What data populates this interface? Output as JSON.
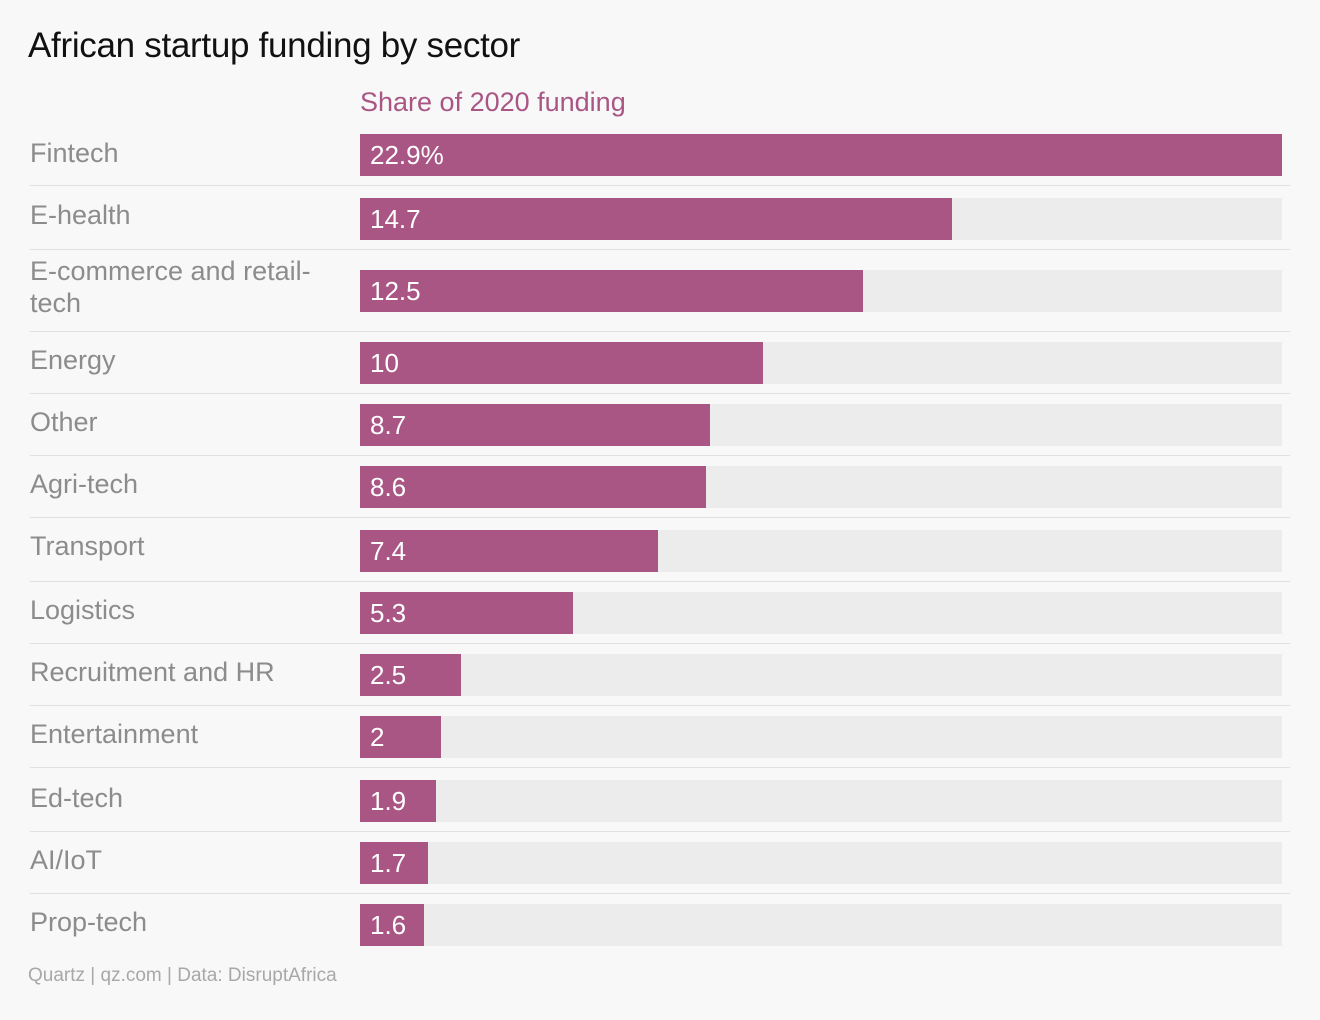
{
  "chart_data": {
    "type": "bar",
    "orientation": "horizontal",
    "title": "African startup funding by sector",
    "series": [
      {
        "name": "Share of 2020 funding",
        "values": [
          22.9,
          14.7,
          12.5,
          10,
          8.7,
          8.6,
          7.4,
          5.3,
          2.5,
          2,
          1.9,
          1.7,
          1.6
        ],
        "value_labels": [
          "22.9%",
          "14.7",
          "12.5",
          "10",
          "8.7",
          "8.6",
          "7.4",
          "5.3",
          "2.5",
          "2",
          "1.9",
          "1.7",
          "1.6"
        ]
      }
    ],
    "categories": [
      "Fintech",
      "E-health",
      "E-commerce and retail-tech",
      "Energy",
      "Other",
      "Agri-tech",
      "Transport",
      "Logistics",
      "Recruitment and HR",
      "Entertainment",
      "Ed-tech",
      "AI/IoT",
      "Prop-tech"
    ],
    "xlim": [
      0,
      22.9
    ],
    "grid": false,
    "source": "Quartz | qz.com | Data: DisruptAfrica"
  },
  "colors": {
    "bar": "#a95685",
    "series_label": "#a95685",
    "track": "#ececec"
  }
}
